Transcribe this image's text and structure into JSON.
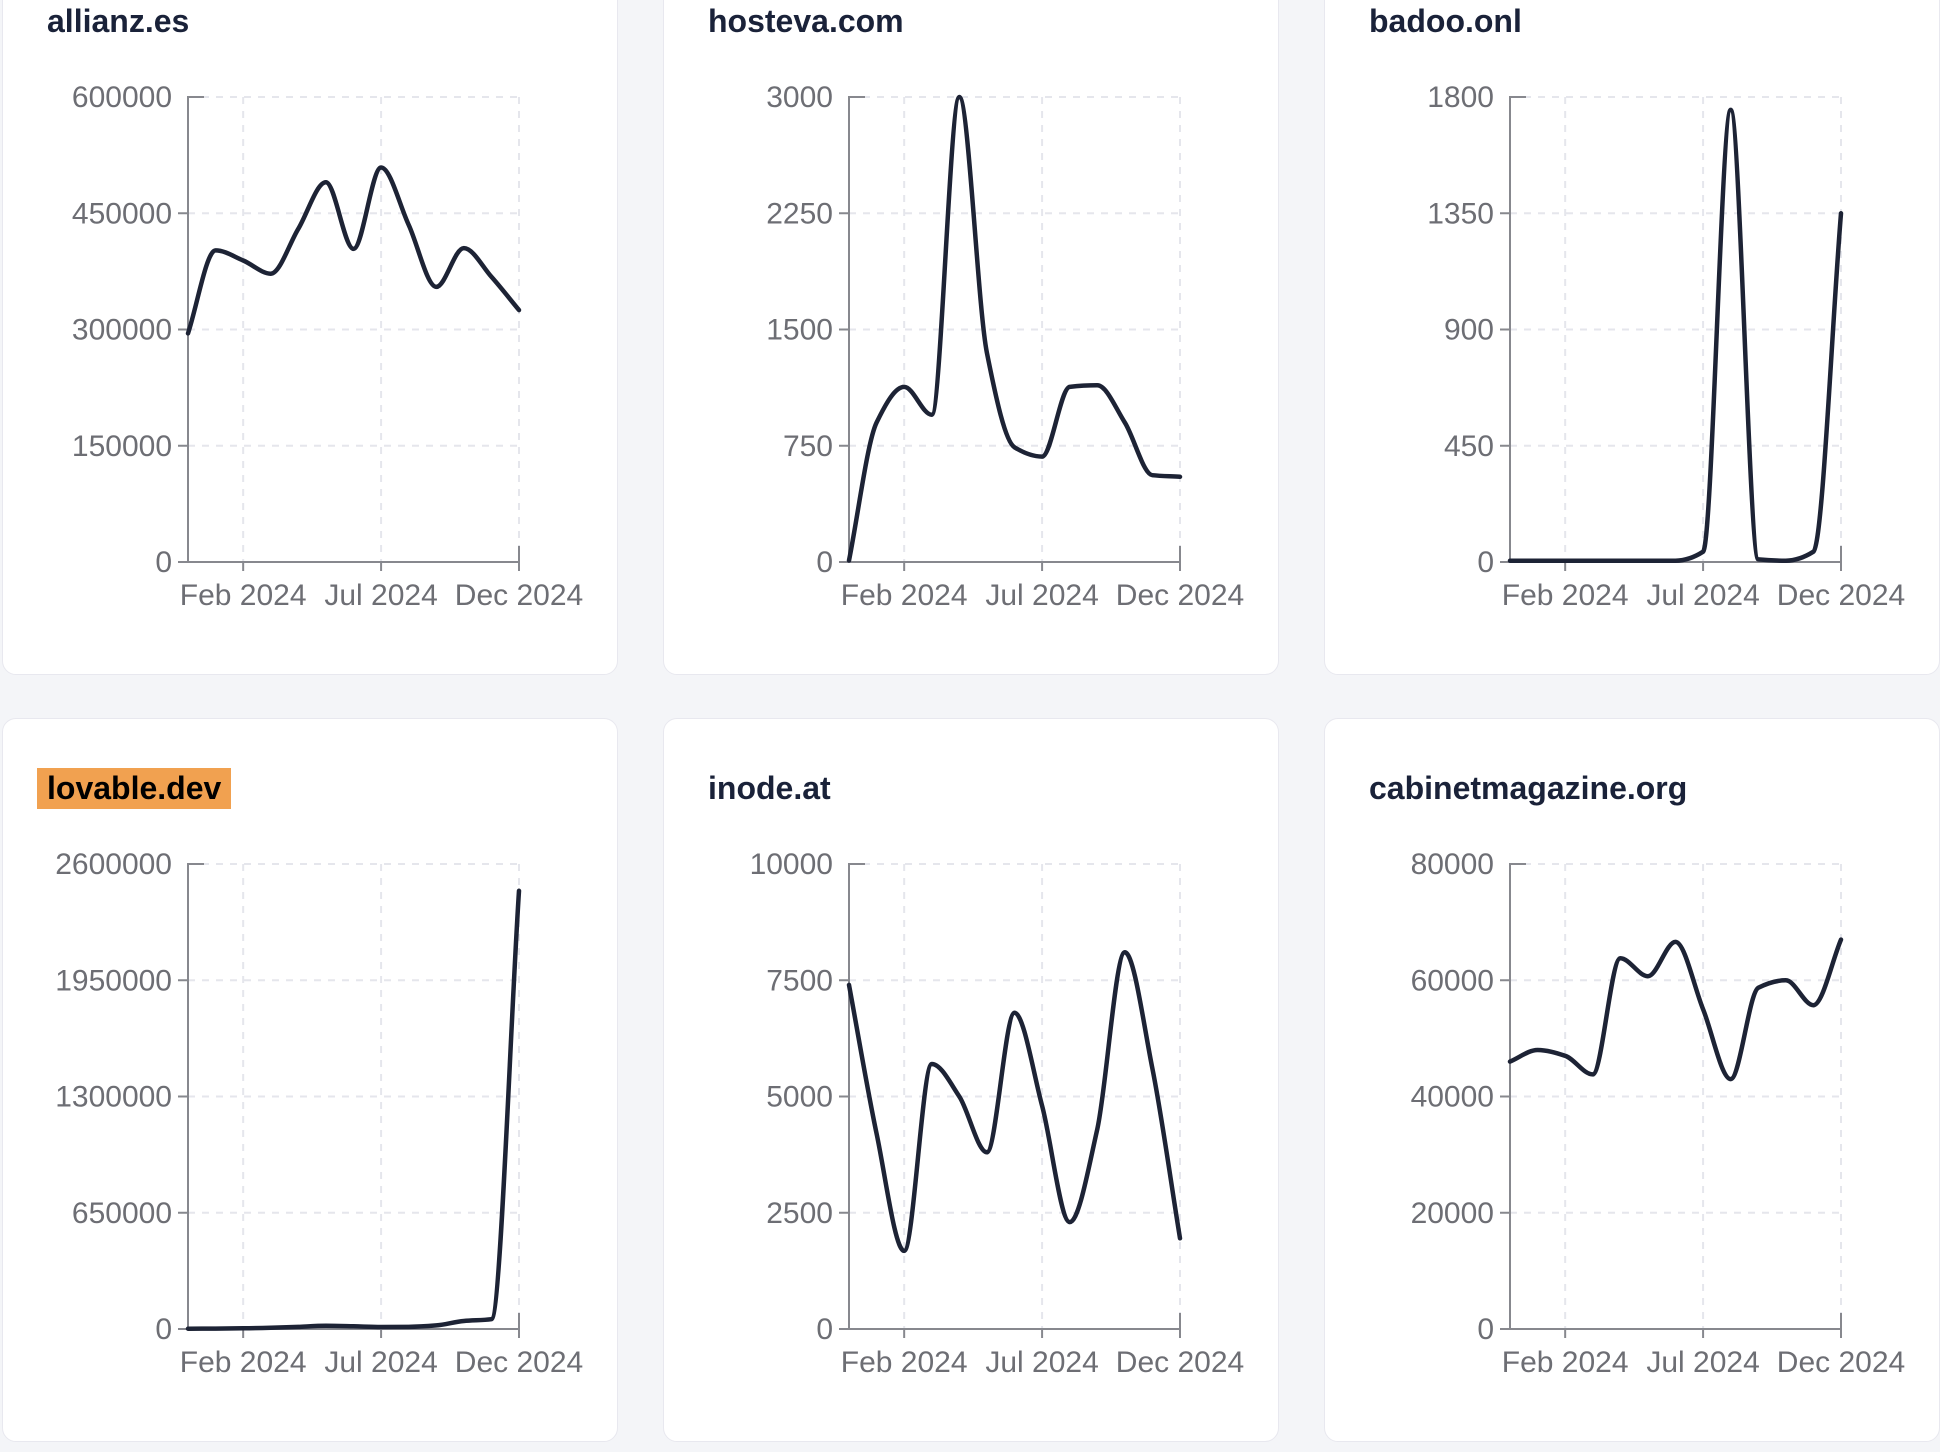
{
  "colors": {
    "page_bg": "#f4f5f8",
    "card_bg": "#ffffff",
    "card_border": "#e8e8ef",
    "title": "#1a2239",
    "line": "#1d2335",
    "axis": "#87888e",
    "tick_label": "#6d6e74",
    "grid": "#e5e6ec",
    "highlight_bg": "#f1a150",
    "highlight_text": "#000000"
  },
  "chart_data": [
    {
      "title": "allianz.es",
      "type": "line",
      "title_highlighted": false,
      "x": [
        "Dec 2023",
        "Jan 2024",
        "Feb 2024",
        "Mar 2024",
        "Apr 2024",
        "May 2024",
        "Jun 2024",
        "Jul 2024",
        "Aug 2024",
        "Sep 2024",
        "Oct 2024",
        "Nov 2024",
        "Dec 2024"
      ],
      "values": [
        295000,
        402000,
        389000,
        372000,
        430000,
        490000,
        404000,
        509000,
        435000,
        355000,
        405000,
        368000,
        325000
      ],
      "yticks": [
        0,
        150000,
        300000,
        450000,
        600000
      ],
      "ylim": [
        0,
        600000
      ],
      "xtick_labels": [
        "Feb 2024",
        "Jul 2024",
        "Dec 2024"
      ],
      "xtick_indices": [
        2,
        7,
        12
      ],
      "xlabel": "",
      "ylabel": "",
      "grid": true,
      "legend": false
    },
    {
      "title": "hosteva.com",
      "type": "line",
      "title_highlighted": false,
      "x": [
        "Dec 2023",
        "Jan 2024",
        "Feb 2024",
        "Mar 2024",
        "Apr 2024",
        "May 2024",
        "Jun 2024",
        "Jul 2024",
        "Aug 2024",
        "Sep 2024",
        "Oct 2024",
        "Nov 2024",
        "Dec 2024"
      ],
      "values": [
        10,
        900,
        1130,
        950,
        3000,
        1350,
        740,
        680,
        1130,
        1140,
        900,
        560,
        550
      ],
      "yticks": [
        0,
        750,
        1500,
        2250,
        3000
      ],
      "ylim": [
        0,
        3000
      ],
      "xtick_labels": [
        "Feb 2024",
        "Jul 2024",
        "Dec 2024"
      ],
      "xtick_indices": [
        2,
        7,
        12
      ],
      "xlabel": "",
      "ylabel": "",
      "grid": true,
      "legend": false
    },
    {
      "title": "badoo.onl",
      "type": "line",
      "title_highlighted": false,
      "x": [
        "Dec 2023",
        "Jan 2024",
        "Feb 2024",
        "Mar 2024",
        "Apr 2024",
        "May 2024",
        "Jun 2024",
        "Jul 2024",
        "Aug 2024",
        "Sep 2024",
        "Oct 2024",
        "Nov 2024",
        "Dec 2024"
      ],
      "values": [
        5,
        5,
        5,
        5,
        5,
        5,
        5,
        40,
        1750,
        10,
        5,
        40,
        1350
      ],
      "yticks": [
        0,
        450,
        900,
        1350,
        1800
      ],
      "ylim": [
        0,
        1800
      ],
      "xtick_labels": [
        "Feb 2024",
        "Jul 2024",
        "Dec 2024"
      ],
      "xtick_indices": [
        2,
        7,
        12
      ],
      "xlabel": "",
      "ylabel": "",
      "grid": true,
      "legend": false
    },
    {
      "title": "lovable.dev",
      "type": "line",
      "title_highlighted": true,
      "x": [
        "Dec 2023",
        "Jan 2024",
        "Feb 2024",
        "Mar 2024",
        "Apr 2024",
        "May 2024",
        "Jun 2024",
        "Jul 2024",
        "Aug 2024",
        "Sep 2024",
        "Oct 2024",
        "Nov 2024",
        "Dec 2024"
      ],
      "values": [
        1500,
        2500,
        4000,
        7000,
        12000,
        18000,
        15000,
        11000,
        12000,
        20000,
        45000,
        55000,
        2450000
      ],
      "yticks": [
        0,
        650000,
        1300000,
        1950000,
        2600000
      ],
      "ylim": [
        0,
        2600000
      ],
      "xtick_labels": [
        "Feb 2024",
        "Jul 2024",
        "Dec 2024"
      ],
      "xtick_indices": [
        2,
        7,
        12
      ],
      "xlabel": "",
      "ylabel": "",
      "grid": true,
      "legend": false
    },
    {
      "title": "inode.at",
      "type": "line",
      "title_highlighted": false,
      "x": [
        "Dec 2023",
        "Jan 2024",
        "Feb 2024",
        "Mar 2024",
        "Apr 2024",
        "May 2024",
        "Jun 2024",
        "Jul 2024",
        "Aug 2024",
        "Sep 2024",
        "Oct 2024",
        "Nov 2024",
        "Dec 2024"
      ],
      "values": [
        7400,
        4200,
        1680,
        5700,
        5000,
        3800,
        6800,
        4800,
        2300,
        4300,
        8100,
        5600,
        1950
      ],
      "yticks": [
        0,
        2500,
        5000,
        7500,
        10000
      ],
      "ylim": [
        0,
        10000
      ],
      "xtick_labels": [
        "Feb 2024",
        "Jul 2024",
        "Dec 2024"
      ],
      "xtick_indices": [
        2,
        7,
        12
      ],
      "xlabel": "",
      "ylabel": "",
      "grid": true,
      "legend": false
    },
    {
      "title": "cabinetmagazine.org",
      "type": "line",
      "title_highlighted": false,
      "x": [
        "Dec 2023",
        "Jan 2024",
        "Feb 2024",
        "Mar 2024",
        "Apr 2024",
        "May 2024",
        "Jun 2024",
        "Jul 2024",
        "Aug 2024",
        "Sep 2024",
        "Oct 2024",
        "Nov 2024",
        "Dec 2024"
      ],
      "values": [
        46000,
        48000,
        47000,
        43800,
        63800,
        60700,
        66600,
        55000,
        43000,
        58700,
        60000,
        55700,
        67000
      ],
      "yticks": [
        0,
        20000,
        40000,
        60000,
        80000
      ],
      "ylim": [
        0,
        80000
      ],
      "xtick_labels": [
        "Feb 2024",
        "Jul 2024",
        "Dec 2024"
      ],
      "xtick_indices": [
        2,
        7,
        12
      ],
      "xlabel": "",
      "ylabel": "",
      "grid": true,
      "legend": false
    }
  ]
}
